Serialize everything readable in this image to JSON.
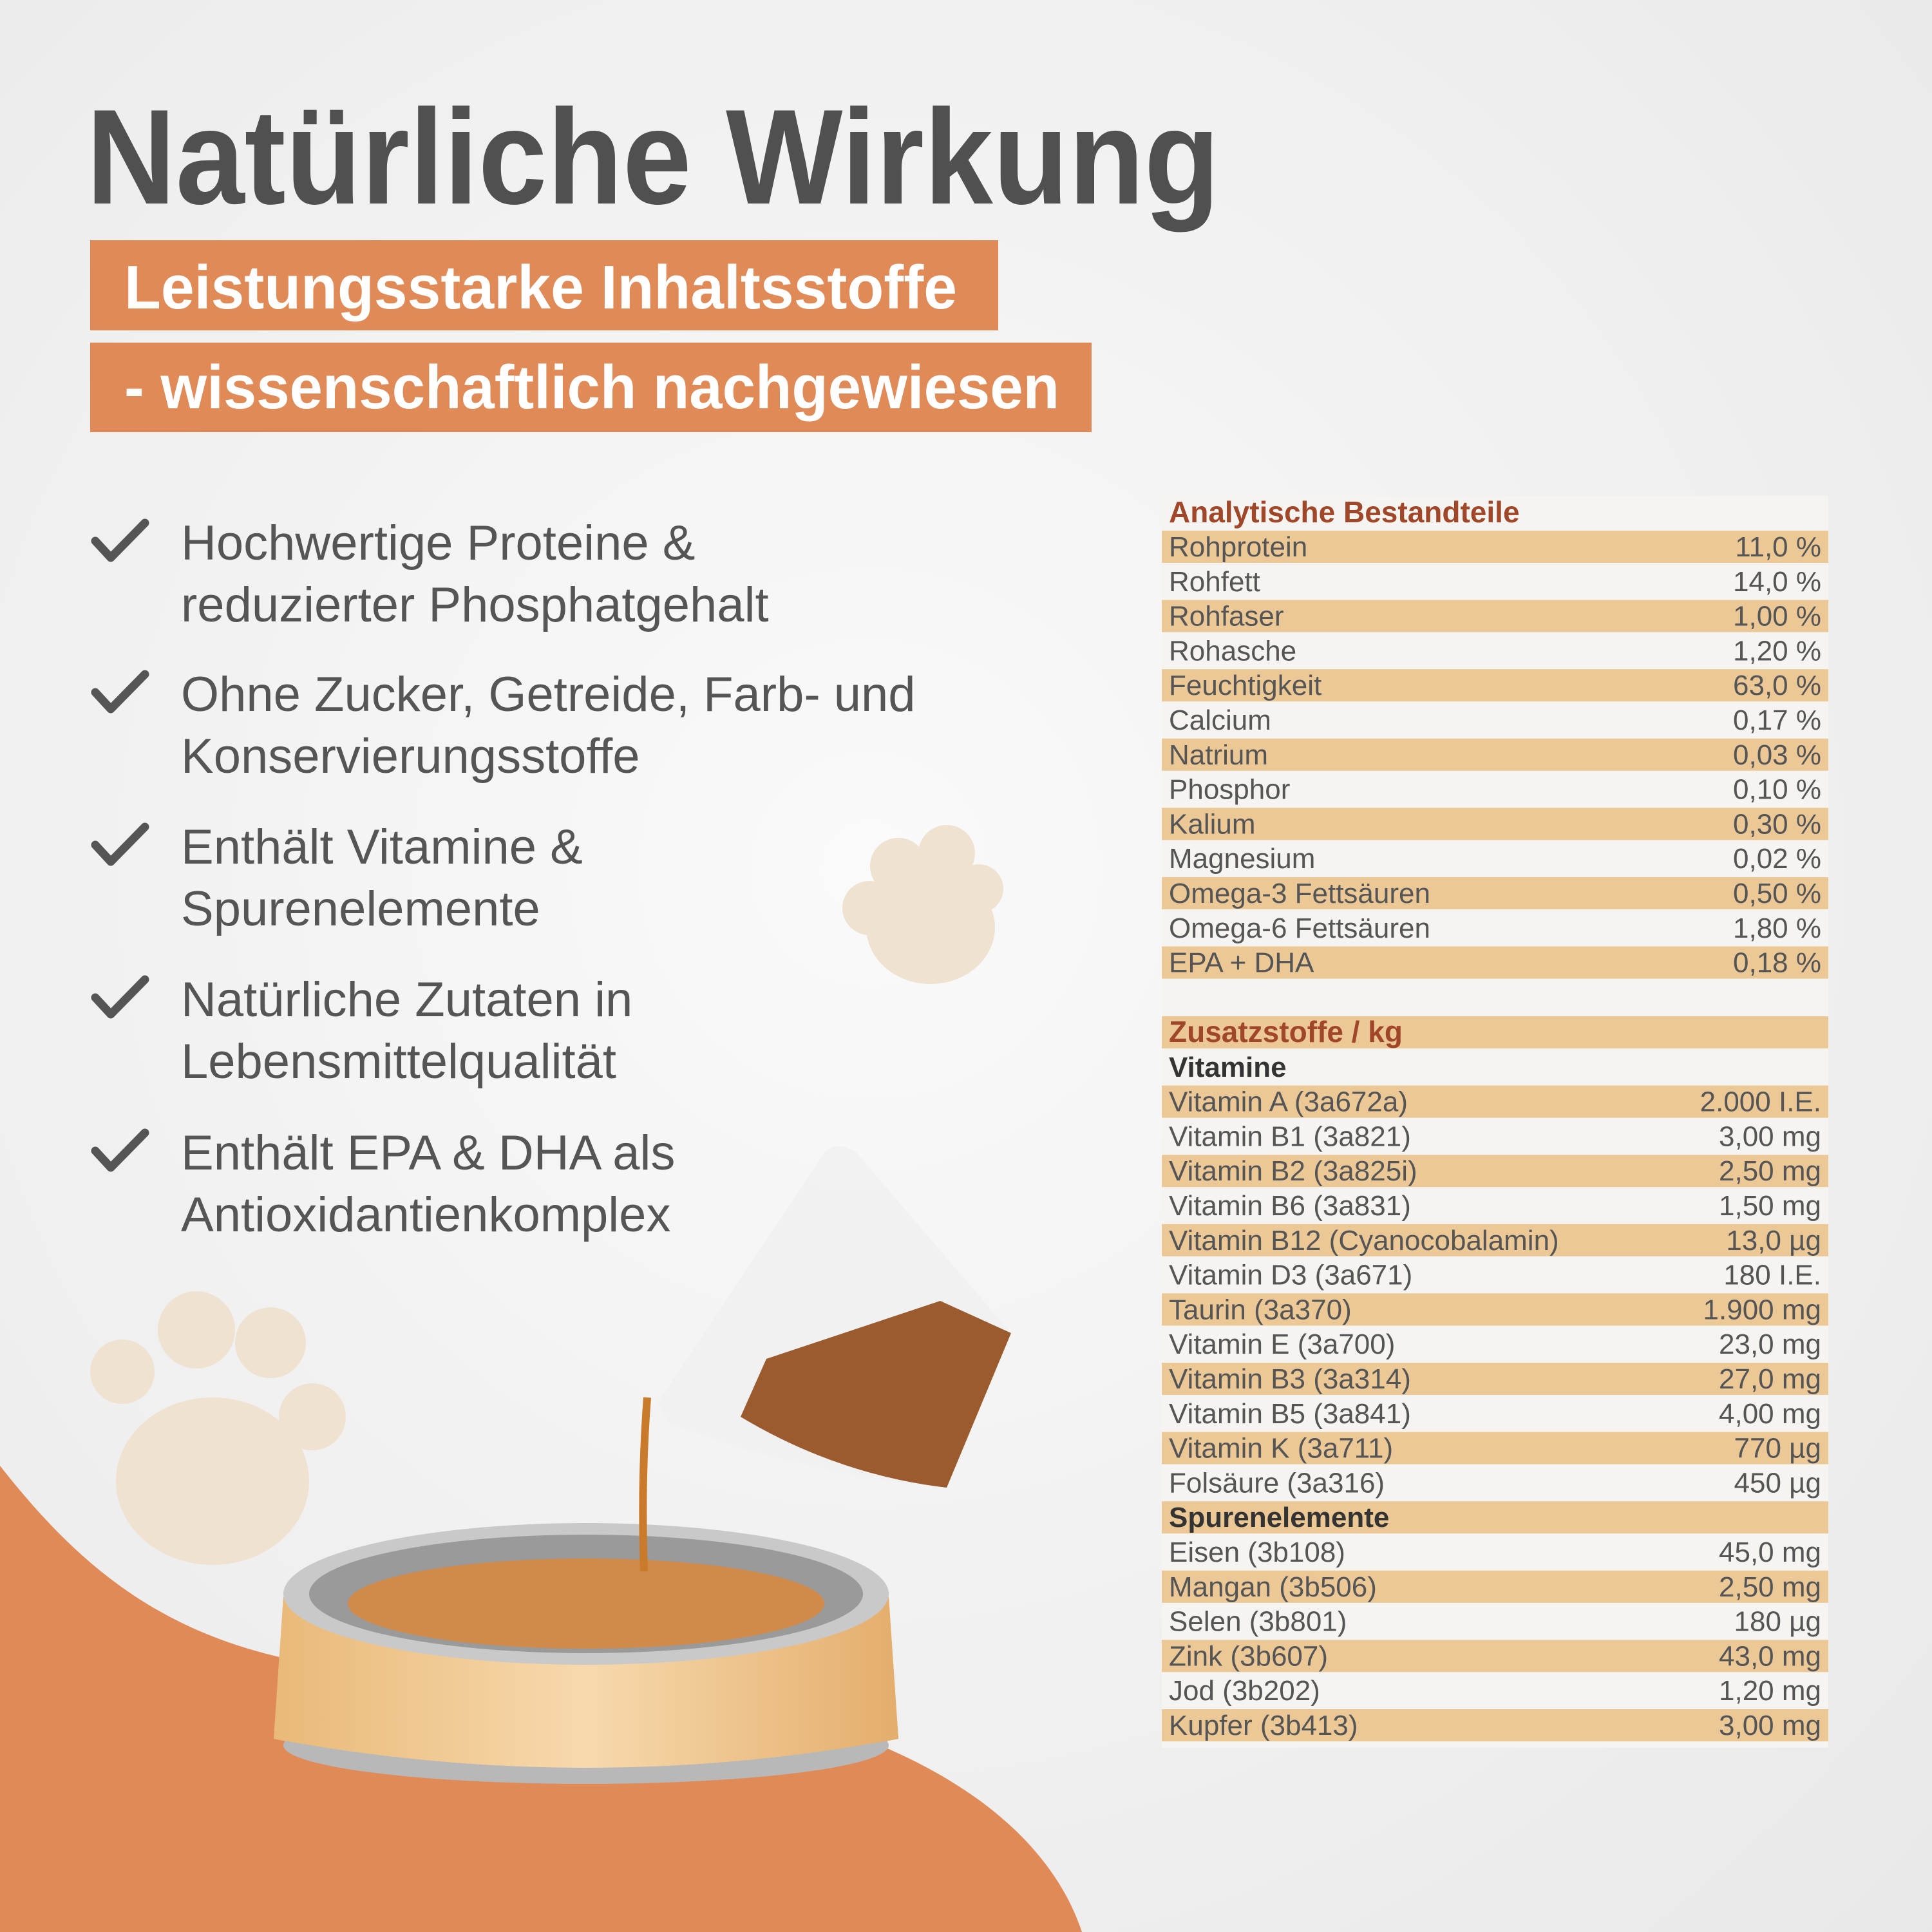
{
  "title": "Natürliche Wirkung",
  "subtitle": [
    "Leistungsstarke Inhaltsstoffe",
    "- wissenschaftlich nachgewiesen"
  ],
  "bullets": [
    [
      "Hochwertige Proteine &",
      "reduzierter Phosphatgehalt"
    ],
    [
      "Ohne Zucker, Getreide, Farb- und",
      "Konservierungsstoffe"
    ],
    [
      "Enthält Vitamine &",
      "Spurenelemente"
    ],
    [
      "Natürliche Zutaten in",
      "Lebensmittelqualität"
    ],
    [
      "Enthält EPA & DHA als",
      "Antioxidantienkomplex"
    ]
  ],
  "table": {
    "analytical": {
      "heading": "Analytische Bestandteile",
      "rows": [
        [
          "Rohprotein",
          "11,0 %"
        ],
        [
          "Rohfett",
          "14,0 %"
        ],
        [
          "Rohfaser",
          "1,00 %"
        ],
        [
          "Rohasche",
          "1,20 %"
        ],
        [
          "Feuchtigkeit",
          "63,0 %"
        ],
        [
          "Calcium",
          "0,17 %"
        ],
        [
          "Natrium",
          "0,03 %"
        ],
        [
          "Phosphor",
          "0,10 %"
        ],
        [
          "Kalium",
          "0,30 %"
        ],
        [
          "Magnesium",
          "0,02 %"
        ],
        [
          "Omega-3 Fettsäuren",
          "0,50 %"
        ],
        [
          "Omega-6 Fettsäuren",
          "1,80 %"
        ],
        [
          "EPA + DHA",
          "0,18 %"
        ]
      ]
    },
    "additives": {
      "heading": "Zusatzstoffe / kg",
      "groups": [
        {
          "heading": "Vitamine",
          "rows": [
            [
              "Vitamin A (3a672a)",
              "2.000 I.E."
            ],
            [
              "Vitamin B1 (3a821)",
              "3,00 mg"
            ],
            [
              "Vitamin B2 (3a825i)",
              "2,50 mg"
            ],
            [
              "Vitamin B6 (3a831)",
              "1,50 mg"
            ],
            [
              "Vitamin B12 (Cyanocobalamin)",
              "13,0 µg"
            ],
            [
              "Vitamin D3 (3a671)",
              "180 I.E."
            ],
            [
              "Taurin (3a370)",
              "1.900 mg"
            ],
            [
              "Vitamin E (3a700)",
              "23,0 mg"
            ],
            [
              "Vitamin B3 (3a314)",
              "27,0 mg"
            ],
            [
              "Vitamin B5 (3a841)",
              "4,00 mg"
            ],
            [
              "Vitamin K (3a711)",
              "770 µg"
            ],
            [
              "Folsäure (3a316)",
              "450 µg"
            ]
          ]
        },
        {
          "heading": "Spurenelemente",
          "rows": [
            [
              "Eisen (3b108)",
              "45,0 mg"
            ],
            [
              "Mangan (3b506)",
              "2,50 mg"
            ],
            [
              "Selen (3b801)",
              "180 µg"
            ],
            [
              "Zink (3b607)",
              "43,0 mg"
            ],
            [
              "Jod (3b202)",
              "1,20 mg"
            ],
            [
              "Kupfer (3b413)",
              "3,00 mg"
            ]
          ]
        }
      ]
    }
  }
}
